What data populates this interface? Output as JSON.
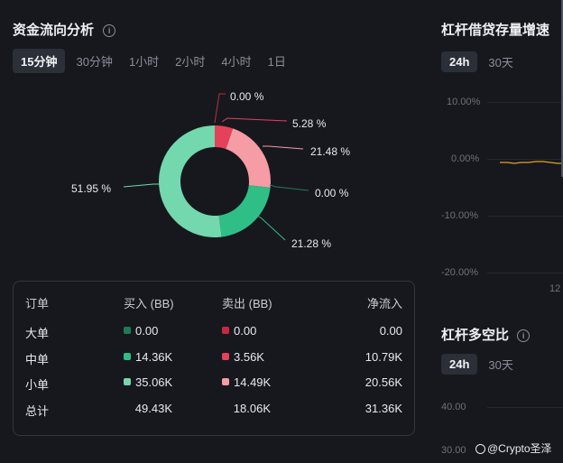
{
  "left": {
    "title": "资金流向分析",
    "tabs": [
      {
        "label": "15分钟",
        "active": true
      },
      {
        "label": "30分钟",
        "active": false
      },
      {
        "label": "1小时",
        "active": false
      },
      {
        "label": "2小时",
        "active": false
      },
      {
        "label": "4小时",
        "active": false
      },
      {
        "label": "1日",
        "active": false
      }
    ],
    "donut_labels": {
      "big_sell": "0.00 %",
      "mid_sell": "5.28 %",
      "small_sell": "21.48 %",
      "big_buy": "0.00 %",
      "mid_buy": "21.28 %",
      "small_buy": "51.95 %"
    },
    "table": {
      "headers": [
        "订单",
        "买入 (BB)",
        "卖出 (BB)",
        "净流入"
      ],
      "rows": [
        {
          "name": "大单",
          "buy": "0.00",
          "sell": "0.00",
          "net": "0.00"
        },
        {
          "name": "中单",
          "buy": "14.36K",
          "sell": "3.56K",
          "net": "10.79K"
        },
        {
          "name": "小单",
          "buy": "35.06K",
          "sell": "14.49K",
          "net": "20.56K"
        },
        {
          "name": "总计",
          "buy": "49.43K",
          "sell": "18.06K",
          "net": "31.36K"
        }
      ]
    }
  },
  "right_top": {
    "title": "杠杆借贷存量增速",
    "tabs": [
      {
        "label": "24h",
        "active": true
      },
      {
        "label": "30天",
        "active": false
      }
    ],
    "yticks": [
      "10.00%",
      "0.00%",
      "-10.00%",
      "-20.00%"
    ],
    "xtick": "12"
  },
  "right_bottom": {
    "title": "杠杆多空比",
    "tabs": [
      {
        "label": "24h",
        "active": true
      },
      {
        "label": "30天",
        "active": false
      }
    ],
    "yticks": [
      "40.00",
      "30.00"
    ]
  },
  "watermark": "@Crypto圣泽",
  "colors": {
    "buy_big": "#1f7a57",
    "buy_mid": "#2fbf86",
    "buy_small": "#73d8ad",
    "sell_big": "#c22a44",
    "sell_mid": "#e6415a",
    "sell_small": "#f59ca4",
    "line": "#e3a12a"
  },
  "chart_data": {
    "type": "pie",
    "title": "",
    "categories": [
      "大单卖出",
      "中单卖出",
      "小单卖出",
      "大单买入",
      "中单买入",
      "小单买入"
    ],
    "values": [
      0.0,
      5.28,
      21.48,
      0.0,
      21.28,
      51.95
    ],
    "unit": "%"
  }
}
